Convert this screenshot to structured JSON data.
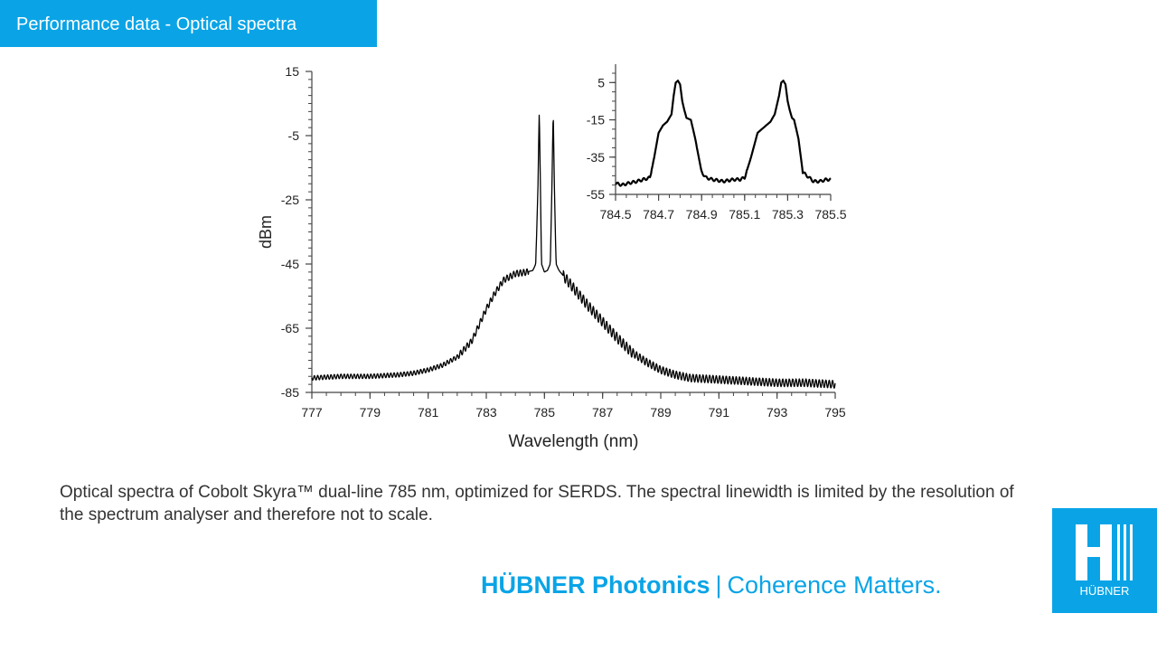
{
  "header": {
    "title": "Performance data - Optical spectra"
  },
  "caption": "Optical spectra of Cobolt Skyra™ dual-line 785 nm, optimized for SERDS. The spectral linewidth is limited by the resolution of the spectrum analyser and therefore not to scale.",
  "footer": {
    "brand": "HÜBNER Photonics",
    "separator": "|",
    "slogan": "Coherence Matters.",
    "logo_text": "HÜBNER"
  },
  "colors": {
    "accent": "#0aa4e6",
    "trace": "#000000"
  },
  "chart_data": [
    {
      "type": "line",
      "title": "",
      "xlabel": "Wavelength (nm)",
      "ylabel": "dBm",
      "xlim": [
        777,
        795
      ],
      "ylim": [
        -85,
        15
      ],
      "xticks": [
        777,
        779,
        781,
        783,
        785,
        787,
        789,
        791,
        793,
        795
      ],
      "yticks": [
        15,
        -5,
        -25,
        -45,
        -65,
        -85
      ],
      "grid": false,
      "series": [
        {
          "x": [
            777,
            778,
            779,
            780,
            780.5,
            781,
            781.5,
            782,
            782.5,
            783,
            783.3,
            783.6,
            784,
            784.4,
            784.6,
            784.7,
            784.78,
            784.82,
            784.86,
            784.9,
            785.0,
            785.1,
            785.2,
            785.26,
            785.3,
            785.34,
            785.4,
            785.5,
            786,
            786.5,
            787,
            787.5,
            788,
            788.5,
            789,
            789.5,
            790,
            791,
            792,
            793,
            794,
            795
          ],
          "y": [
            -80.5,
            -80,
            -80,
            -79.5,
            -79,
            -78,
            -76.5,
            -74,
            -69,
            -59,
            -54,
            -50,
            -48,
            -47.5,
            -47,
            -45,
            -20,
            3,
            -20,
            -45,
            -47.5,
            -47,
            -45,
            -20,
            3,
            -20,
            -45,
            -47,
            -52.5,
            -58,
            -63,
            -68,
            -72.5,
            -75.5,
            -78,
            -79.5,
            -80.5,
            -81,
            -81.5,
            -82,
            -82,
            -82.5
          ]
        }
      ]
    },
    {
      "type": "line",
      "title": "",
      "xlabel": "",
      "ylabel": "",
      "xlim": [
        784.5,
        785.5
      ],
      "ylim": [
        -55,
        10
      ],
      "xticks": [
        784.5,
        784.7,
        784.9,
        785.1,
        785.3,
        785.5
      ],
      "xtick_labels": [
        "784.5",
        "784.7",
        "784.9",
        "785.1",
        "785.3",
        "785.5"
      ],
      "yticks": [
        5,
        -15,
        -35,
        -55
      ],
      "grid": false,
      "legend": "inset top-right",
      "series": [
        {
          "x": [
            784.5,
            784.53,
            784.56,
            784.6,
            784.63,
            784.66,
            784.68,
            784.7,
            784.72,
            784.74,
            784.76,
            784.77,
            784.78,
            784.79,
            784.8,
            784.81,
            784.82,
            784.83,
            784.85,
            784.87,
            784.9,
            784.92,
            784.95,
            785.0,
            785.05,
            785.08,
            785.1,
            785.13,
            785.16,
            785.2,
            785.22,
            785.24,
            785.26,
            785.27,
            785.28,
            785.29,
            785.3,
            785.31,
            785.32,
            785.33,
            785.35,
            785.37,
            785.4,
            785.42,
            785.45,
            785.48,
            785.5
          ],
          "y": [
            -49,
            -50,
            -49,
            -48,
            -47,
            -46,
            -35,
            -22,
            -18,
            -16,
            -12,
            -2,
            5,
            6,
            4,
            -5,
            -10,
            -14,
            -15,
            -25,
            -43,
            -46,
            -47,
            -48,
            -47,
            -47,
            -46,
            -35,
            -22,
            -18,
            -16,
            -12,
            -2,
            5,
            6,
            4,
            -5,
            -10,
            -14,
            -15,
            -25,
            -43,
            -46,
            -48,
            -48,
            -47,
            -47
          ]
        }
      ]
    }
  ]
}
